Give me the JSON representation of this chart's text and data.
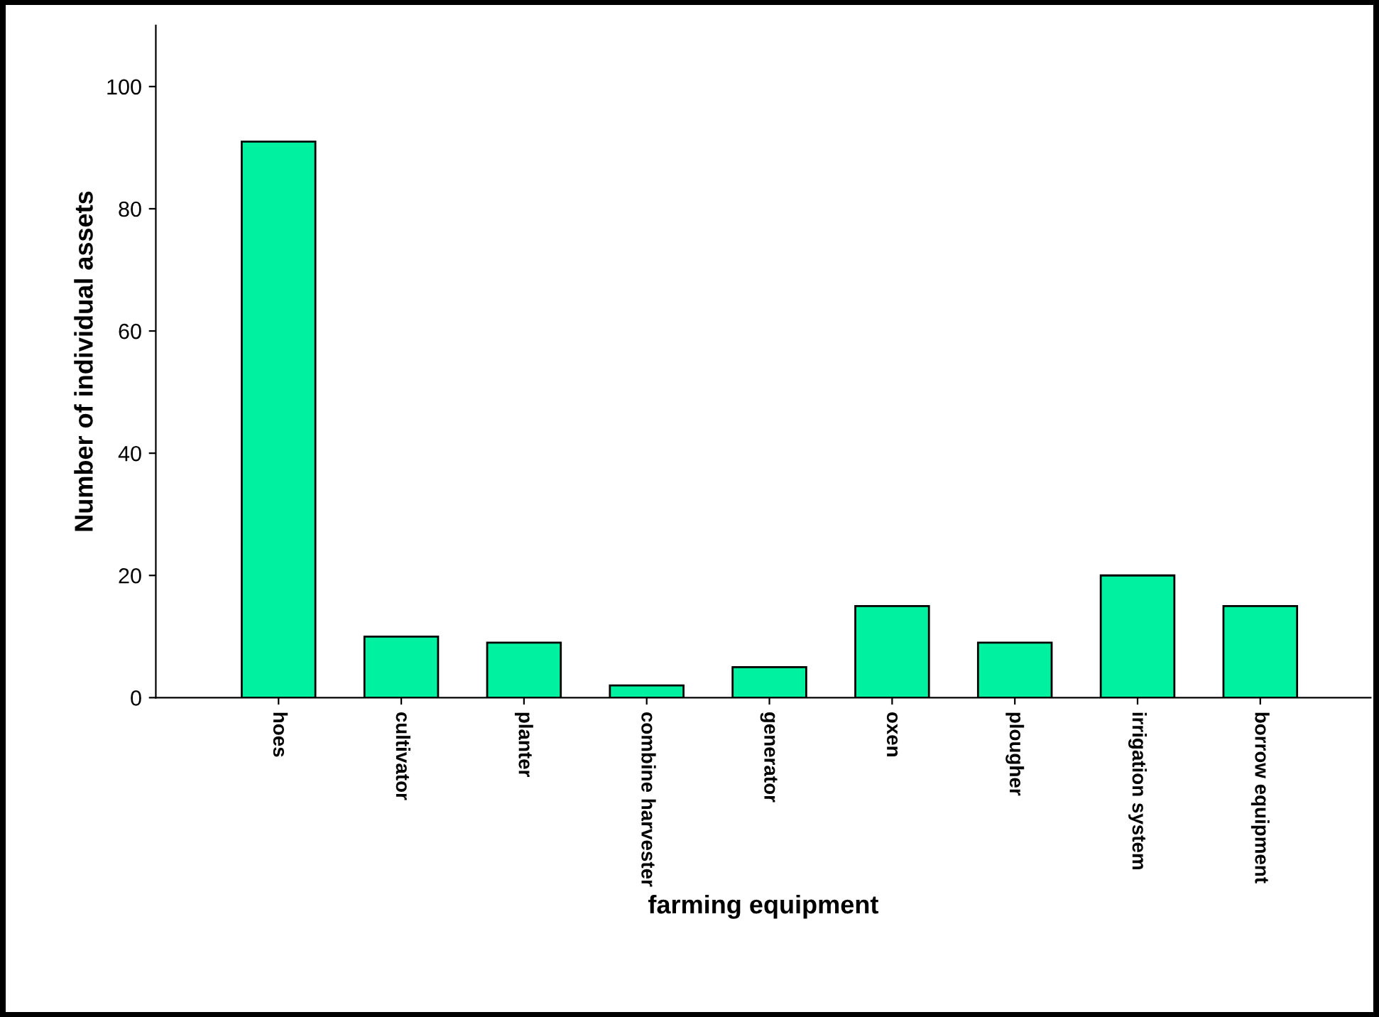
{
  "chart_data": {
    "type": "bar",
    "xlabel": "farming equipment",
    "ylabel": "Number of individual assets",
    "categories": [
      "hoes",
      "cultivator",
      "planter",
      "combine harvester",
      "generator",
      "oxen",
      "plougher",
      "irrigation system",
      "borrow equipment"
    ],
    "values": [
      91,
      10,
      9,
      2,
      5,
      15,
      9,
      20,
      15
    ],
    "color": "#00f2a0",
    "ylim": [
      0,
      110
    ],
    "yticks": [
      0,
      20,
      40,
      60,
      80,
      100
    ],
    "grid": false
  }
}
